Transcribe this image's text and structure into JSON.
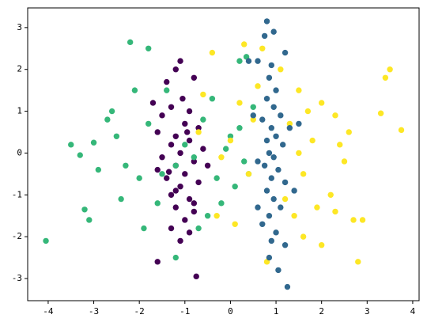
{
  "chart_data": {
    "type": "scatter",
    "xlim": [
      -4.45,
      4.14
    ],
    "ylim": [
      -3.53,
      3.47
    ],
    "xticks": [
      -4,
      -3,
      -2,
      -1,
      0,
      1,
      2,
      3,
      4
    ],
    "yticks": [
      -3,
      -2,
      -1,
      0,
      1,
      2,
      3
    ],
    "grid": false,
    "series": [
      {
        "color": "#440154",
        "x": [
          -1.2,
          -1.1,
          -0.8,
          -1.4,
          -1.3,
          -0.9,
          -1.5,
          -1.0,
          -0.7,
          -1.6,
          -1.2,
          -0.9,
          -1.3,
          -0.6,
          -1.1,
          -1.5,
          -0.8,
          -1.2,
          -1.0,
          -1.4,
          -0.7,
          -1.1,
          -1.3,
          -0.9,
          -1.2,
          -0.8,
          -1.0,
          -1.3,
          -0.9,
          -1.1,
          -0.8,
          -1.6,
          -1.7,
          -0.5,
          -1.6,
          -0.75,
          -1.05,
          -1.35,
          -0.95,
          -1.2
        ],
        "values": [
          2.0,
          2.2,
          1.8,
          1.7,
          1.1,
          1.0,
          0.9,
          0.7,
          0.6,
          0.5,
          0.4,
          0.3,
          0.2,
          0.1,
          0.0,
          -0.1,
          -0.2,
          -0.3,
          -0.5,
          -0.6,
          -0.7,
          -0.8,
          -1.0,
          -1.1,
          -1.3,
          -1.4,
          -1.6,
          -1.8,
          -1.9,
          -2.1,
          -1.2,
          -0.4,
          1.2,
          -0.3,
          -2.6,
          -2.95,
          1.3,
          -0.45,
          0.5,
          -0.9
        ]
      },
      {
        "color": "#35b779",
        "x": [
          -4.05,
          -3.5,
          -3.3,
          -3.0,
          -3.2,
          -3.1,
          -2.6,
          -2.2,
          -1.8,
          -2.5,
          -2.3,
          -2.0,
          -2.4,
          -1.9,
          -1.6,
          -1.8,
          -1.5,
          -1.2,
          -1.0,
          -0.8,
          -0.6,
          -0.4,
          -0.5,
          -0.3,
          -0.1,
          0.2,
          0.3,
          0.1,
          0.2,
          0.35,
          0.5,
          0.4,
          -0.7,
          -2.7,
          -2.1,
          -1.4,
          -0.2,
          0.0,
          -2.9,
          -1.2
        ],
        "values": [
          -2.1,
          0.2,
          -0.05,
          0.25,
          -1.35,
          -1.6,
          1.0,
          2.65,
          2.5,
          0.4,
          -0.3,
          -0.6,
          -1.1,
          -1.8,
          -1.2,
          0.7,
          -0.5,
          -2.5,
          0.2,
          -0.1,
          0.8,
          1.3,
          -1.5,
          -0.6,
          0.1,
          0.6,
          -0.2,
          -0.8,
          2.2,
          2.3,
          1.1,
          -0.5,
          -1.8,
          0.8,
          1.5,
          1.5,
          -1.2,
          0.4,
          -0.4,
          -0.3
        ]
      },
      {
        "color": "#fde725",
        "x": [
          3.75,
          3.5,
          3.4,
          3.3,
          2.8,
          2.9,
          2.7,
          2.6,
          2.5,
          2.3,
          2.0,
          2.2,
          2.0,
          1.8,
          1.6,
          1.5,
          1.4,
          1.1,
          0.7,
          0.3,
          0.2,
          0.0,
          -0.2,
          -0.4,
          -0.6,
          -0.3,
          0.1,
          0.4,
          0.5,
          0.8,
          1.2,
          1.3,
          1.7,
          1.9,
          2.4,
          1.6,
          0.6,
          1.5,
          -0.7,
          2.3
        ],
        "values": [
          0.55,
          2.0,
          1.8,
          0.95,
          -2.6,
          -1.6,
          -1.6,
          0.5,
          -0.2,
          0.9,
          1.2,
          -1.0,
          -2.2,
          0.3,
          -0.5,
          1.5,
          -1.5,
          2.0,
          2.5,
          2.6,
          1.2,
          0.3,
          -0.1,
          2.4,
          1.4,
          -1.5,
          -1.7,
          -0.5,
          0.8,
          -2.6,
          -1.1,
          0.7,
          1.0,
          -1.3,
          0.2,
          -2.0,
          1.6,
          0.0,
          0.5,
          -1.4
        ]
      },
      {
        "color": "#31688e",
        "x": [
          0.8,
          0.95,
          0.75,
          1.2,
          0.9,
          0.6,
          0.85,
          1.0,
          0.8,
          0.95,
          1.1,
          0.7,
          0.9,
          1.0,
          0.8,
          1.15,
          0.85,
          0.95,
          0.75,
          1.05,
          0.9,
          1.2,
          0.8,
          0.95,
          1.1,
          0.85,
          0.7,
          1.0,
          0.9,
          1.2,
          0.85,
          1.05,
          1.25,
          0.6,
          1.3,
          0.5,
          1.5,
          0.6,
          1.4,
          0.4
        ],
        "values": [
          3.15,
          2.9,
          2.8,
          2.4,
          2.1,
          2.2,
          1.8,
          1.5,
          1.3,
          1.1,
          0.9,
          0.8,
          0.6,
          0.4,
          0.3,
          0.2,
          0.0,
          -0.1,
          -0.3,
          -0.4,
          -0.6,
          -0.7,
          -0.9,
          -1.1,
          -1.3,
          -1.5,
          -1.7,
          -1.9,
          -2.1,
          -2.2,
          -2.5,
          -2.8,
          -3.2,
          -0.2,
          0.6,
          0.9,
          0.7,
          -1.3,
          -0.9,
          2.2
        ]
      }
    ]
  }
}
